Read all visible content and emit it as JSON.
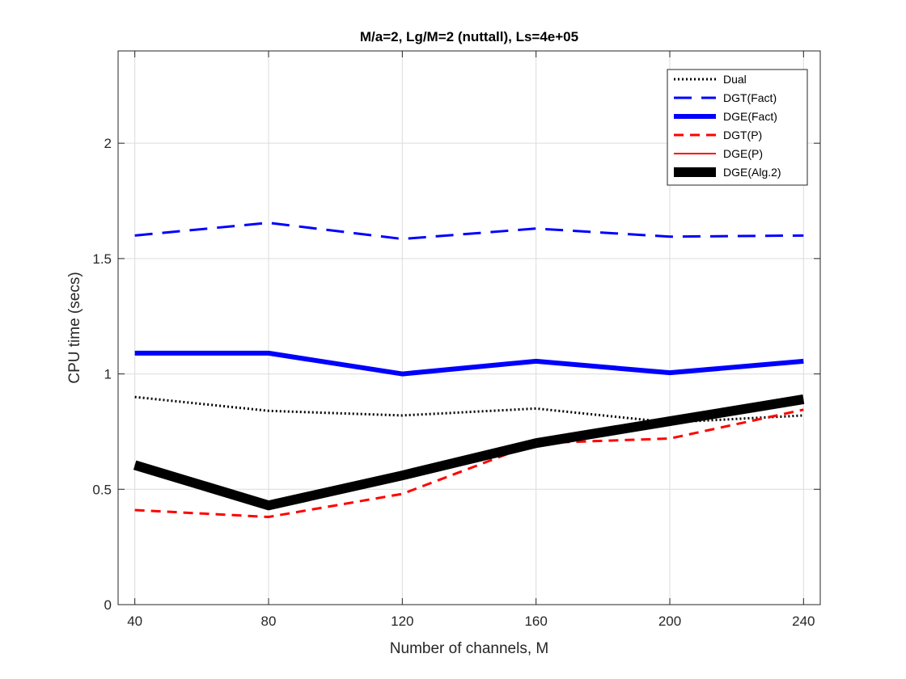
{
  "chart_data": {
    "type": "line",
    "title": "M/a=2, Lg/M=2 (nuttall), Ls=4e+05",
    "xlabel": "Number of channels, M",
    "ylabel": "CPU time (secs)",
    "xlim": [
      35,
      245
    ],
    "ylim": [
      0,
      2.4
    ],
    "xticks": [
      40,
      80,
      120,
      160,
      200,
      240
    ],
    "yticks": [
      0,
      0.5,
      1,
      1.5,
      2
    ],
    "xtick_labels": [
      "40",
      "80",
      "120",
      "160",
      "200",
      "240"
    ],
    "ytick_labels": [
      "0",
      "0.5",
      "1",
      "1.5",
      "2"
    ],
    "grid": true,
    "legend_position": "top-right",
    "x": [
      40,
      80,
      120,
      160,
      200,
      240
    ],
    "series": [
      {
        "name": "Dual",
        "values": [
          0.9,
          0.84,
          0.82,
          0.85,
          0.79,
          0.82
        ],
        "color": "#000000",
        "style": "dotted"
      },
      {
        "name": "DGT(Fact)",
        "values": [
          1.6,
          1.655,
          1.585,
          1.63,
          1.595,
          1.6
        ],
        "color": "#0000ff",
        "style": "dashed"
      },
      {
        "name": "DGE(Fact)",
        "values": [
          1.09,
          1.09,
          1.0,
          1.055,
          1.005,
          1.055
        ],
        "color": "#0000ff",
        "style": "solid-thick"
      },
      {
        "name": "DGT(P)",
        "values": [
          0.41,
          0.38,
          0.48,
          0.7,
          0.72,
          0.845
        ],
        "color": "#ff0000",
        "style": "dashed"
      },
      {
        "name": "DGE(P)",
        "values": [
          0.605,
          0.43,
          0.56,
          0.7,
          0.795,
          0.89
        ],
        "color": "#ff0000",
        "style": "solid"
      },
      {
        "name": "DGE(Alg.2)",
        "values": [
          0.605,
          0.43,
          0.56,
          0.7,
          0.795,
          0.89
        ],
        "color": "#000000",
        "style": "solid-heavy"
      }
    ]
  }
}
